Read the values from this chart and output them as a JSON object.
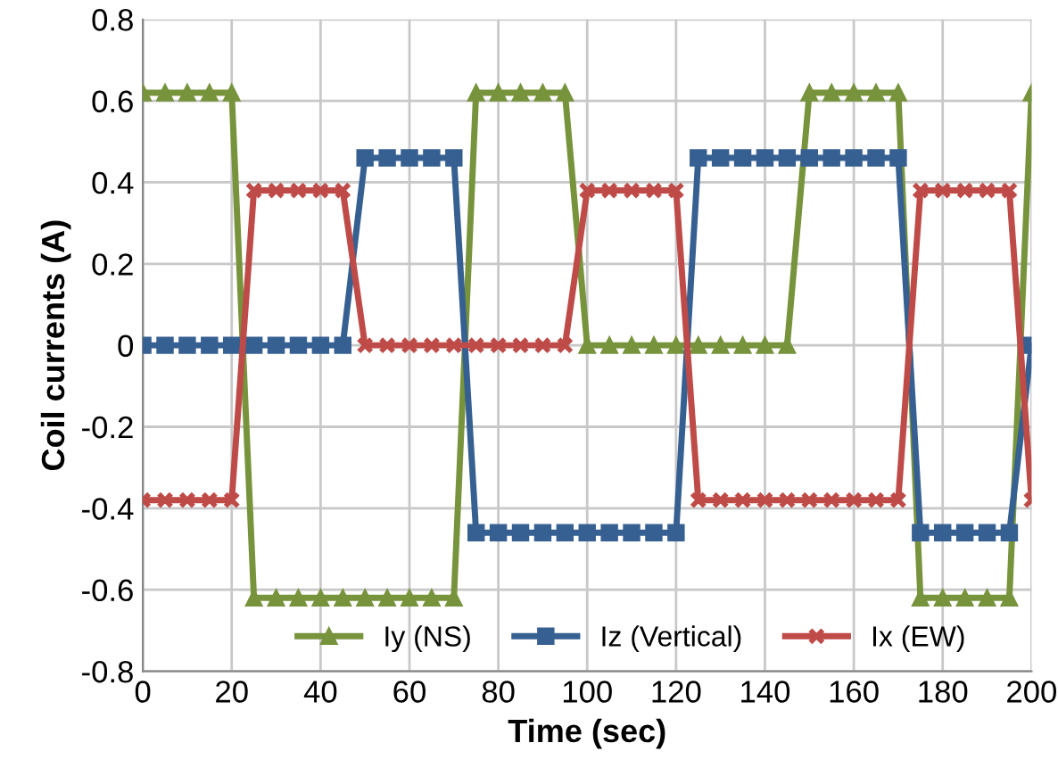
{
  "chart_data": {
    "type": "line",
    "xlabel": "Time (sec)",
    "ylabel": "Coil currents (A)",
    "x": [
      0,
      5,
      10,
      15,
      20,
      25,
      30,
      35,
      40,
      45,
      50,
      55,
      60,
      65,
      70,
      75,
      80,
      85,
      90,
      95,
      100,
      105,
      110,
      115,
      120,
      125,
      130,
      135,
      140,
      145,
      150,
      155,
      160,
      165,
      170,
      175,
      180,
      185,
      190,
      195,
      200
    ],
    "series": [
      {
        "name": "Iy (NS)",
        "color": "#77933c",
        "marker": "triangle",
        "values": [
          0.62,
          0.62,
          0.62,
          0.62,
          0.62,
          -0.62,
          -0.62,
          -0.62,
          -0.62,
          -0.62,
          -0.62,
          -0.62,
          -0.62,
          -0.62,
          -0.62,
          0.62,
          0.62,
          0.62,
          0.62,
          0.62,
          0,
          0,
          0,
          0,
          0,
          0,
          0,
          0,
          0,
          0,
          0.62,
          0.62,
          0.62,
          0.62,
          0.62,
          -0.62,
          -0.62,
          -0.62,
          -0.62,
          -0.62,
          0.62
        ]
      },
      {
        "name": "Iz (Vertical)",
        "color": "#376092",
        "marker": "square",
        "values": [
          0,
          0,
          0,
          0,
          0,
          0,
          0,
          0,
          0,
          0,
          0.46,
          0.46,
          0.46,
          0.46,
          0.46,
          -0.46,
          -0.46,
          -0.46,
          -0.46,
          -0.46,
          -0.46,
          -0.46,
          -0.46,
          -0.46,
          -0.46,
          0.46,
          0.46,
          0.46,
          0.46,
          0.46,
          0.46,
          0.46,
          0.46,
          0.46,
          0.46,
          -0.46,
          -0.46,
          -0.46,
          -0.46,
          -0.46,
          0
        ]
      },
      {
        "name": "Ix (EW)",
        "color": "#be4b48",
        "marker": "cross",
        "values": [
          -0.38,
          -0.38,
          -0.38,
          -0.38,
          -0.38,
          0.38,
          0.38,
          0.38,
          0.38,
          0.38,
          0,
          0,
          0,
          0,
          0,
          0,
          0,
          0,
          0,
          0,
          0.38,
          0.38,
          0.38,
          0.38,
          0.38,
          -0.38,
          -0.38,
          -0.38,
          -0.38,
          -0.38,
          -0.38,
          -0.38,
          -0.38,
          -0.38,
          -0.38,
          0.38,
          0.38,
          0.38,
          0.38,
          0.38,
          -0.38
        ]
      }
    ],
    "xlim": [
      0,
      200
    ],
    "xticks": [
      0,
      20,
      40,
      60,
      80,
      100,
      120,
      140,
      160,
      180,
      200
    ],
    "ylim": [
      -0.8,
      0.8
    ],
    "yticks": [
      {
        "value": -0.8,
        "label": "-0.8"
      },
      {
        "value": -0.6,
        "label": "-0.6"
      },
      {
        "value": -0.4,
        "label": "-0.4"
      },
      {
        "value": -0.2,
        "label": "-0.2"
      },
      {
        "value": 0,
        "label": "0"
      },
      {
        "value": 0.2,
        "label": "0.2"
      },
      {
        "value": 0.4,
        "label": "0.4"
      },
      {
        "value": 0.6,
        "label": "0.6"
      },
      {
        "value": 0.8,
        "label": "0.8"
      }
    ],
    "grid": true,
    "legend": "bottom",
    "line_style": "solid"
  }
}
